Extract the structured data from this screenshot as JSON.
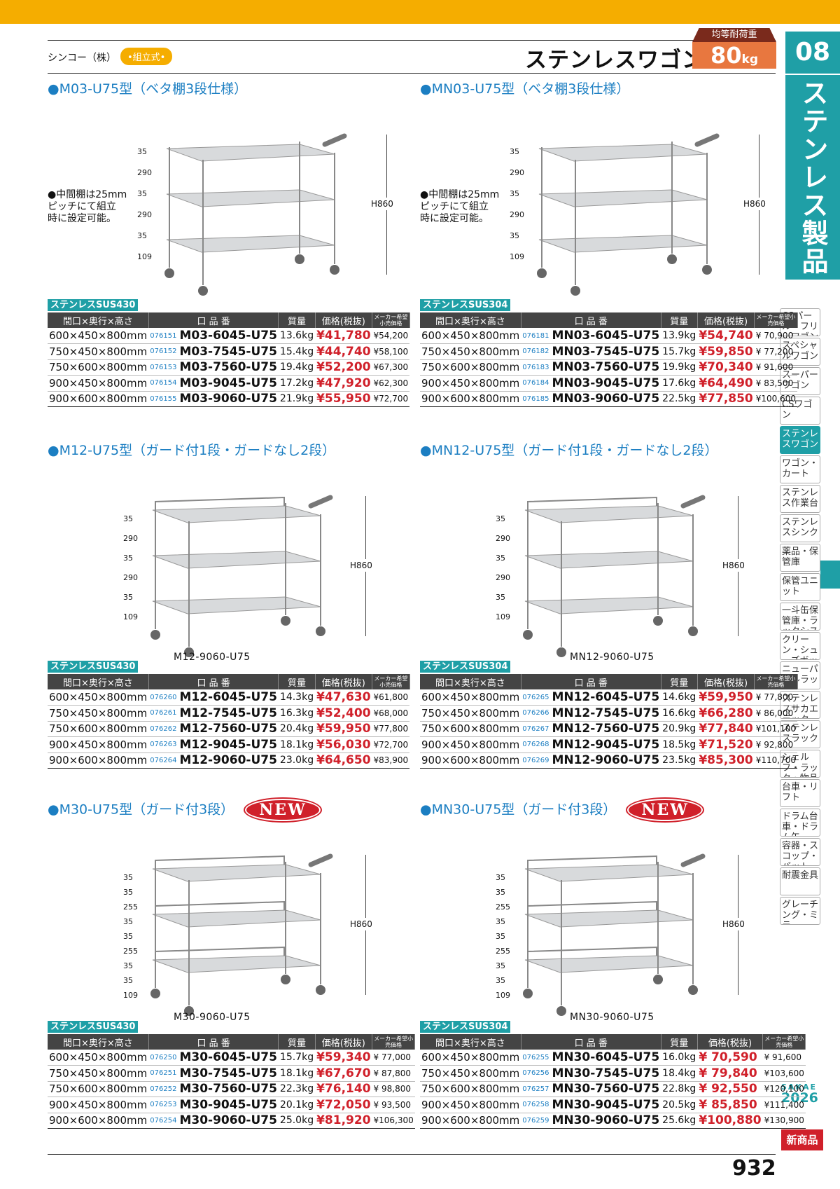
{
  "header": {
    "maker": "シンコー（株）",
    "assembly_badge": "•組立式•",
    "title": "ステンレスワゴン",
    "load_label": "均等耐荷重",
    "load_value": "80",
    "load_unit": "kg"
  },
  "sidebar": {
    "section_number": "08",
    "section_name": "ステンレス製品",
    "items": [
      "CSパール・フリーワゴン",
      "スペシャルワゴン",
      "スーパーワゴン",
      "CSワゴン",
      "ステンレスワゴン",
      "ワゴン・カート",
      "ステンレス作業台",
      "ステンレスシンク",
      "薬品・保管庫",
      "保管ユニット",
      "一斗缶保管庫・ラックシステム",
      "クリーン・シューズボックス",
      "ニューパールラック",
      "ステンレスサカエラック",
      "ステンレスラック",
      "シェルフ・ラック・物品棚",
      "台車・リフト",
      "ドラム台車・ドラム缶",
      "容器・スコップ・バット",
      "耐震金具",
      "グレーチング・ミラー"
    ],
    "active_index": 4,
    "brand": "SAKAE",
    "year": "2026",
    "new_items": "新商品"
  },
  "table_headers": {
    "size": "間口×奥行×高さ",
    "model": "口 品 番",
    "weight": "質量",
    "price": "価格(税抜)",
    "retail": "メーカー希望小売価格"
  },
  "products": [
    {
      "title": "●M03-U75型（ベタ棚3段仕様）",
      "note": "●中間棚は25mm\nピッチにて組立\n時に設定可能。",
      "dims": [
        "35",
        "290",
        "35",
        "290",
        "35",
        "109"
      ],
      "height": "H860",
      "caption": "",
      "material": "ステンレスSUS430",
      "rows": [
        {
          "size": "600×450×800mm",
          "code": "076151",
          "model": "M03-6045-U75",
          "weight": "13.6kg",
          "price": "¥41,780",
          "retail": "¥54,200"
        },
        {
          "size": "750×450×800mm",
          "code": "076152",
          "model": "M03-7545-U75",
          "weight": "15.4kg",
          "price": "¥44,740",
          "retail": "¥58,100"
        },
        {
          "size": "750×600×800mm",
          "code": "076153",
          "model": "M03-7560-U75",
          "weight": "19.4kg",
          "price": "¥52,200",
          "retail": "¥67,300"
        },
        {
          "size": "900×450×800mm",
          "code": "076154",
          "model": "M03-9045-U75",
          "weight": "17.2kg",
          "price": "¥47,920",
          "retail": "¥62,300"
        },
        {
          "size": "900×600×800mm",
          "code": "076155",
          "model": "M03-9060-U75",
          "weight": "21.9kg",
          "price": "¥55,950",
          "retail": "¥72,700"
        }
      ]
    },
    {
      "title": "●MN03-U75型（ベタ棚3段仕様）",
      "note": "●中間棚は25mm\nピッチにて組立\n時に設定可能。",
      "dims": [
        "35",
        "290",
        "35",
        "290",
        "35",
        "109"
      ],
      "height": "H860",
      "caption": "",
      "material": "ステンレスSUS304",
      "rows": [
        {
          "size": "600×450×800mm",
          "code": "076181",
          "model": "MN03-6045-U75",
          "weight": "13.9kg",
          "price": "¥54,740",
          "retail": "¥ 70,900"
        },
        {
          "size": "750×450×800mm",
          "code": "076182",
          "model": "MN03-7545-U75",
          "weight": "15.7kg",
          "price": "¥59,850",
          "retail": "¥ 77,200"
        },
        {
          "size": "750×600×800mm",
          "code": "076183",
          "model": "MN03-7560-U75",
          "weight": "19.9kg",
          "price": "¥70,340",
          "retail": "¥ 91,600"
        },
        {
          "size": "900×450×800mm",
          "code": "076184",
          "model": "MN03-9045-U75",
          "weight": "17.6kg",
          "price": "¥64,490",
          "retail": "¥ 83,500"
        },
        {
          "size": "900×600×800mm",
          "code": "076185",
          "model": "MN03-9060-U75",
          "weight": "22.5kg",
          "price": "¥77,850",
          "retail": "¥100,600"
        }
      ]
    },
    {
      "title": "●M12-U75型（ガード付1段・ガードなし2段）",
      "note": "",
      "dims": [
        "35",
        "290",
        "35",
        "290",
        "35",
        "109"
      ],
      "height": "H860",
      "caption": "M12-9060-U75",
      "material": "ステンレスSUS430",
      "rows": [
        {
          "size": "600×450×800mm",
          "code": "076260",
          "model": "M12-6045-U75",
          "weight": "14.3kg",
          "price": "¥47,630",
          "retail": "¥61,800"
        },
        {
          "size": "750×450×800mm",
          "code": "076261",
          "model": "M12-7545-U75",
          "weight": "16.3kg",
          "price": "¥52,400",
          "retail": "¥68,000"
        },
        {
          "size": "750×600×800mm",
          "code": "076262",
          "model": "M12-7560-U75",
          "weight": "20.4kg",
          "price": "¥59,950",
          "retail": "¥77,800"
        },
        {
          "size": "900×450×800mm",
          "code": "076263",
          "model": "M12-9045-U75",
          "weight": "18.1kg",
          "price": "¥56,030",
          "retail": "¥72,700"
        },
        {
          "size": "900×600×800mm",
          "code": "076264",
          "model": "M12-9060-U75",
          "weight": "23.0kg",
          "price": "¥64,650",
          "retail": "¥83,900"
        }
      ]
    },
    {
      "title": "●MN12-U75型（ガード付1段・ガードなし2段）",
      "note": "",
      "dims": [
        "35",
        "290",
        "35",
        "290",
        "35",
        "109"
      ],
      "height": "H860",
      "caption": "MN12-9060-U75",
      "material": "ステンレスSUS304",
      "rows": [
        {
          "size": "600×450×800mm",
          "code": "076265",
          "model": "MN12-6045-U75",
          "weight": "14.6kg",
          "price": "¥59,950",
          "retail": "¥ 77,800"
        },
        {
          "size": "750×450×800mm",
          "code": "076266",
          "model": "MN12-7545-U75",
          "weight": "16.6kg",
          "price": "¥66,280",
          "retail": "¥ 86,000"
        },
        {
          "size": "750×600×800mm",
          "code": "076267",
          "model": "MN12-7560-U75",
          "weight": "20.9kg",
          "price": "¥77,840",
          "retail": "¥101,100"
        },
        {
          "size": "900×450×800mm",
          "code": "076268",
          "model": "MN12-9045-U75",
          "weight": "18.5kg",
          "price": "¥71,520",
          "retail": "¥ 92,800"
        },
        {
          "size": "900×600×800mm",
          "code": "076269",
          "model": "MN12-9060-U75",
          "weight": "23.5kg",
          "price": "¥85,300",
          "retail": "¥110,700"
        }
      ]
    },
    {
      "title": "●M30-U75型（ガード付3段）",
      "new": "NEW",
      "note": "",
      "dims": [
        "35",
        "35",
        "255",
        "35",
        "35",
        "255",
        "35",
        "35",
        "109"
      ],
      "height": "H860",
      "caption": "M30-9060-U75",
      "material": "ステンレスSUS430",
      "rows": [
        {
          "size": "600×450×800mm",
          "code": "076250",
          "model": "M30-6045-U75",
          "weight": "15.7kg",
          "price": "¥59,340",
          "retail": "¥ 77,000"
        },
        {
          "size": "750×450×800mm",
          "code": "076251",
          "model": "M30-7545-U75",
          "weight": "18.1kg",
          "price": "¥67,670",
          "retail": "¥ 87,800"
        },
        {
          "size": "750×600×800mm",
          "code": "076252",
          "model": "M30-7560-U75",
          "weight": "22.3kg",
          "price": "¥76,140",
          "retail": "¥ 98,800"
        },
        {
          "size": "900×450×800mm",
          "code": "076253",
          "model": "M30-9045-U75",
          "weight": "20.1kg",
          "price": "¥72,050",
          "retail": "¥ 93,500"
        },
        {
          "size": "900×600×800mm",
          "code": "076254",
          "model": "M30-9060-U75",
          "weight": "25.0kg",
          "price": "¥81,920",
          "retail": "¥106,300"
        }
      ]
    },
    {
      "title": "●MN30-U75型（ガード付3段）",
      "new": "NEW",
      "note": "",
      "dims": [
        "35",
        "35",
        "255",
        "35",
        "35",
        "255",
        "35",
        "35",
        "109"
      ],
      "height": "H860",
      "caption": "MN30-9060-U75",
      "material": "ステンレスSUS304",
      "rows": [
        {
          "size": "600×450×800mm",
          "code": "076255",
          "model": "MN30-6045-U75",
          "weight": "16.0kg",
          "price": "¥ 70,590",
          "retail": "¥ 91,600"
        },
        {
          "size": "750×450×800mm",
          "code": "076256",
          "model": "MN30-7545-U75",
          "weight": "18.4kg",
          "price": "¥ 79,840",
          "retail": "¥103,600"
        },
        {
          "size": "750×600×800mm",
          "code": "076257",
          "model": "MN30-7560-U75",
          "weight": "22.8kg",
          "price": "¥ 92,550",
          "retail": "¥120,100"
        },
        {
          "size": "900×450×800mm",
          "code": "076258",
          "model": "MN30-9045-U75",
          "weight": "20.5kg",
          "price": "¥ 85,850",
          "retail": "¥111,400"
        },
        {
          "size": "900×600×800mm",
          "code": "076259",
          "model": "MN30-9060-U75",
          "weight": "25.6kg",
          "price": "¥100,880",
          "retail": "¥130,900"
        }
      ]
    }
  ],
  "page_number": "932"
}
